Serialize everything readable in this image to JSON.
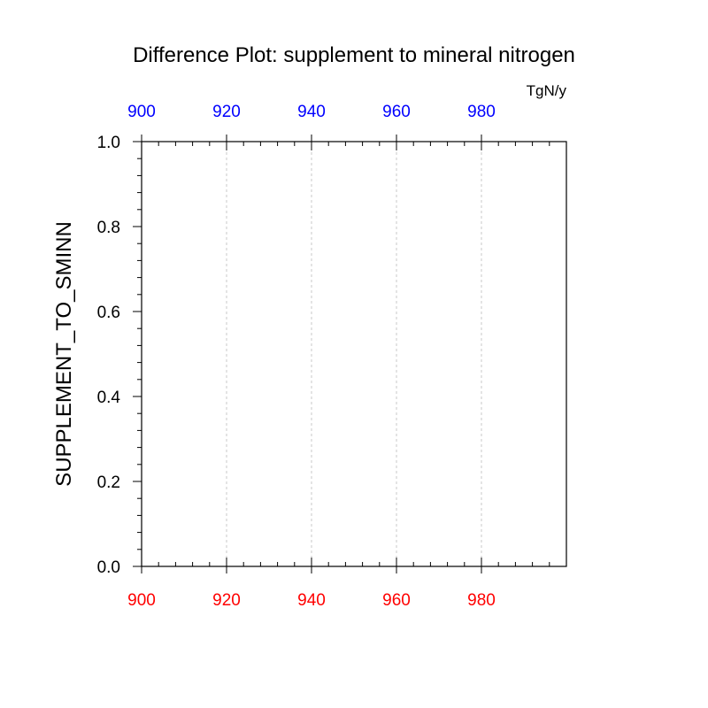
{
  "chart_data": {
    "type": "line",
    "title": "Difference Plot: supplement to mineral nitrogen",
    "units": "TgN/y",
    "ylabel": "SUPPLEMENT_TO_SMINN",
    "xlabel": "",
    "xlim": [
      900,
      1000
    ],
    "ylim": [
      0.0,
      1.0
    ],
    "x_ticks_bottom": [
      "900",
      "920",
      "940",
      "960",
      "980"
    ],
    "x_ticks_top": [
      "900",
      "920",
      "940",
      "960",
      "980"
    ],
    "y_ticks": [
      "0.0",
      "0.2",
      "0.4",
      "0.6",
      "0.8",
      "1.0"
    ],
    "x_tick_values": [
      900,
      920,
      940,
      960,
      980
    ],
    "y_tick_values": [
      0.0,
      0.2,
      0.4,
      0.6,
      0.8,
      1.0
    ],
    "x_minor_step": 4,
    "y_minor_step": 0.04,
    "grid": "vertical dashed",
    "colors": {
      "bottom_tick_labels": "#ff0000",
      "top_tick_labels": "#0000ff",
      "grid": "#c8c8c8",
      "axes": "#000000"
    },
    "series": []
  }
}
